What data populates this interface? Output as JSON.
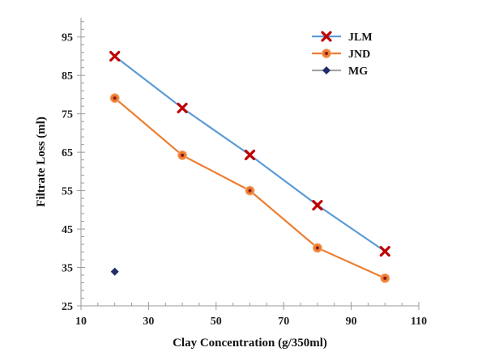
{
  "chart_data": {
    "type": "line",
    "title": "",
    "xlabel": "Clay Concentration (g/350ml)",
    "ylabel": "Filtrate Loss (ml)",
    "xlim": [
      10,
      110
    ],
    "ylim": [
      25,
      100
    ],
    "xticks": [
      10,
      30,
      50,
      70,
      90,
      110
    ],
    "yticks": [
      25,
      35,
      45,
      55,
      65,
      75,
      85,
      95
    ],
    "grid": false,
    "legend_position": "top-right",
    "series": [
      {
        "name": "JLM",
        "color": "#5b9bd5",
        "marker": "x",
        "marker_color": "#c00000",
        "line": true,
        "x": [
          20,
          40,
          60,
          80,
          100
        ],
        "y": [
          90,
          76.5,
          64.3,
          51.2,
          39.2
        ]
      },
      {
        "name": "JND",
        "color": "#ed7d31",
        "marker": "circle-dot",
        "marker_color": "#ed7d31",
        "line": true,
        "x": [
          20,
          40,
          60,
          80,
          100
        ],
        "y": [
          79.1,
          64.2,
          55,
          40.1,
          32.2
        ]
      },
      {
        "name": "MG",
        "color": "#a5a5a5",
        "marker": "diamond",
        "marker_color": "#1f2d6b",
        "line": false,
        "x": [
          20
        ],
        "y": [
          33.9
        ]
      }
    ]
  }
}
